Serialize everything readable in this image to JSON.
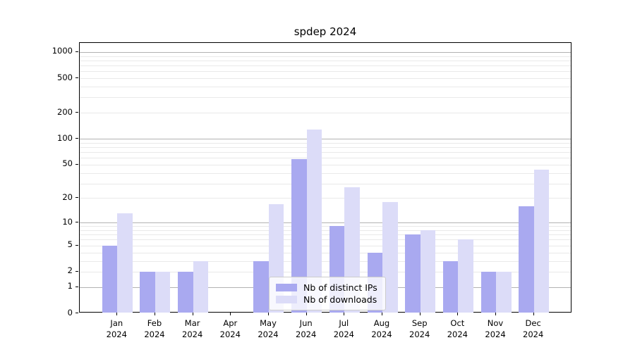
{
  "title": "spdep 2024",
  "legend": {
    "items": [
      {
        "label": "Nb of distinct IPs",
        "color": "#a9a9f0"
      },
      {
        "label": "Nb of downloads",
        "color": "#dcdcf8"
      }
    ]
  },
  "colors": {
    "bar_ips": "#a9a9f0",
    "bar_downloads": "#dcdcf8",
    "grid_major": "#b2b2b2",
    "grid_minor": "#e9e9e9",
    "axis": "#000000",
    "legend_border": "#cccccc"
  },
  "chart_data": {
    "type": "bar",
    "title": "spdep 2024",
    "categories": [
      "Jan",
      "Feb",
      "Mar",
      "Apr",
      "May",
      "Jun",
      "Jul",
      "Aug",
      "Sep",
      "Oct",
      "Nov",
      "Dec"
    ],
    "category_year": "2024",
    "series": [
      {
        "name": "Nb of distinct IPs",
        "color": "#a9a9f0",
        "values": [
          5,
          2,
          2,
          0,
          3,
          58,
          9,
          4,
          7,
          3,
          2,
          16
        ]
      },
      {
        "name": "Nb of downloads",
        "color": "#dcdcf8",
        "values": [
          13,
          2,
          3,
          0,
          17,
          127,
          27,
          18,
          8,
          6,
          2,
          44
        ]
      }
    ],
    "xlabel": "",
    "ylabel": "",
    "y_ticks": [
      0,
      1,
      2,
      5,
      10,
      20,
      50,
      100,
      200,
      500,
      1000
    ],
    "y_major_gridlines": [
      1,
      10,
      100,
      1000
    ],
    "y_scale": "log10(value+1)",
    "ylim": [
      0,
      1000
    ],
    "grid": true,
    "legend_position": "lower center-left inside plot"
  }
}
